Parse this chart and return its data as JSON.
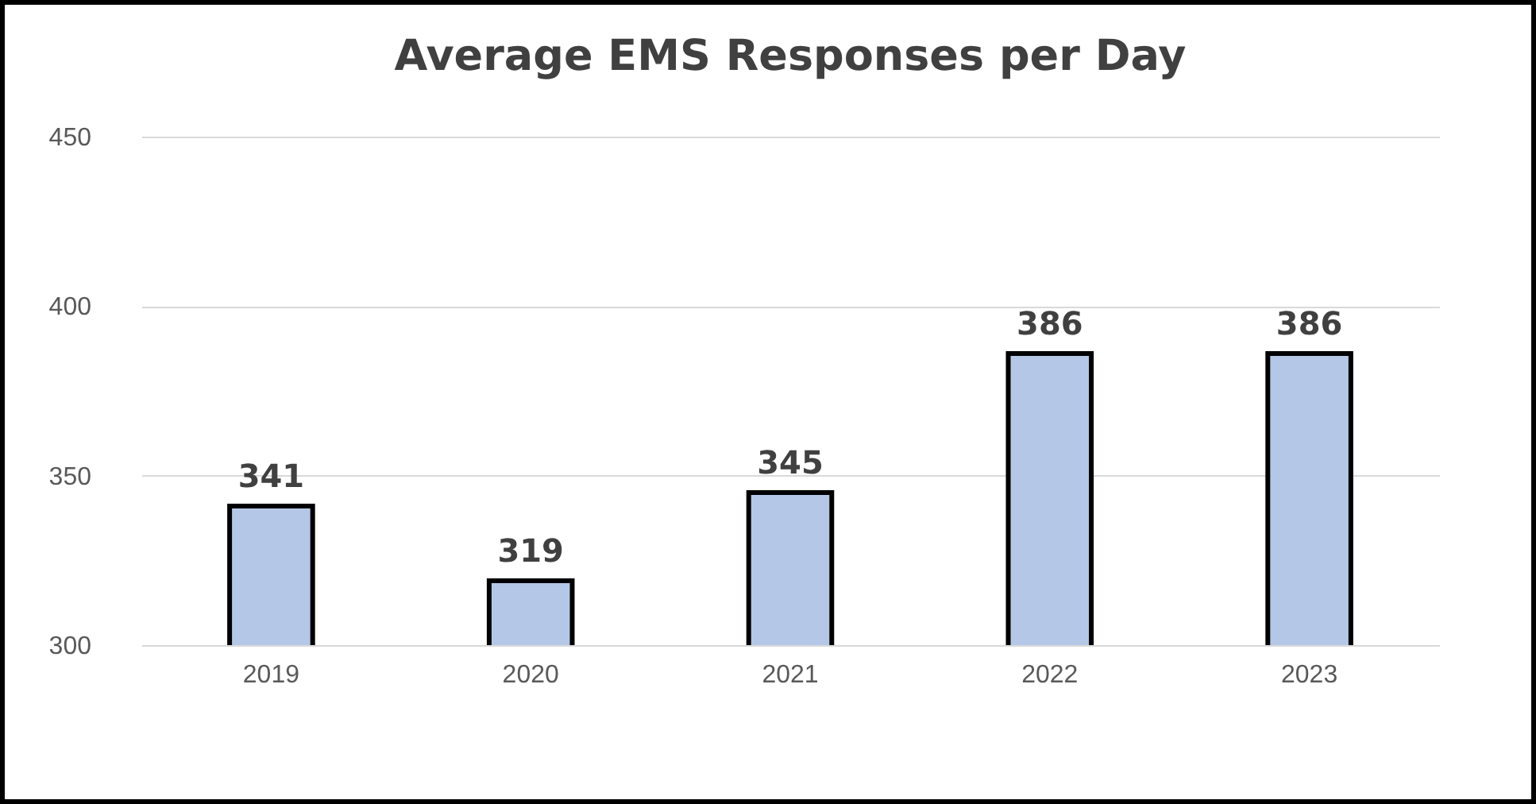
{
  "chart_data": {
    "type": "bar",
    "title": "Average EMS Responses per Day",
    "categories": [
      "2019",
      "2020",
      "2021",
      "2022",
      "2023"
    ],
    "values": [
      341,
      319,
      345,
      386,
      386
    ],
    "color": "#b4c7e7",
    "ylim": [
      300,
      450
    ],
    "yticks": [
      300,
      350,
      400,
      450
    ],
    "grid": "y",
    "data_labels": true
  }
}
